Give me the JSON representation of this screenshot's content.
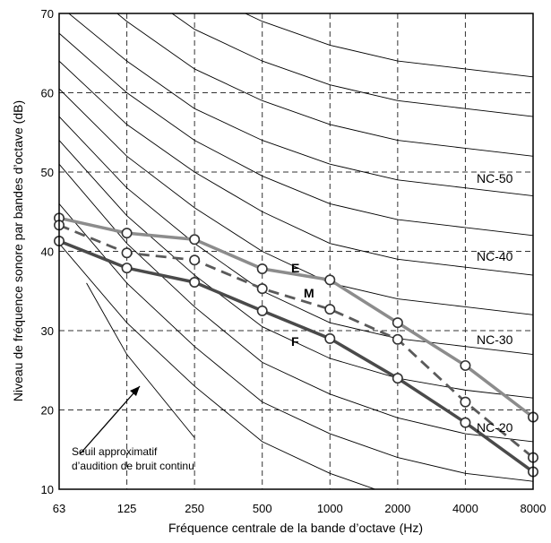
{
  "chart_data": {
    "type": "line",
    "xlabel": "Fréquence centrale de la bande d’octave (Hz)",
    "ylabel": "Niveau de fréquence sonore par bandes d’octave (dB)",
    "x_scale": "log2",
    "categories": [
      "63",
      "125",
      "250",
      "500",
      "1000",
      "2000",
      "4000",
      "8000"
    ],
    "ylim": [
      10,
      70
    ],
    "yticks": [
      "10",
      "20",
      "30",
      "40",
      "50",
      "60",
      "70"
    ],
    "grid": true,
    "grid_style": "dashed",
    "nc_curves": [
      {
        "name": "NC-20",
        "values": [
          51,
          41,
          33,
          26,
          22,
          19,
          17,
          16
        ]
      },
      {
        "name": "NC-30",
        "values": [
          57,
          48,
          41,
          35,
          31,
          29,
          28,
          27
        ]
      },
      {
        "name": "NC-40",
        "values": [
          64,
          56,
          50,
          45,
          41,
          39,
          38,
          37
        ]
      },
      {
        "name": "NC-50",
        "values": [
          71,
          64,
          58,
          54,
          51,
          49,
          48,
          47
        ]
      }
    ],
    "nc_labels": [
      "NC-50",
      "NC-40",
      "NC-30",
      "NC-20"
    ],
    "threshold": {
      "label_line1": "Seuil approximatif",
      "label_line2": "d’audition de bruit continu",
      "values": [
        null,
        27,
        16.5,
        null,
        null,
        null,
        null,
        null
      ]
    },
    "series": [
      {
        "name": "E",
        "color": "#8c8c8c",
        "dash": "solid",
        "values": [
          44.2,
          42.3,
          41.5,
          37.8,
          36.4,
          31.0,
          25.6,
          19.1
        ]
      },
      {
        "name": "M",
        "color": "#5a5a5a",
        "dash": "dashed",
        "values": [
          43.3,
          39.8,
          38.9,
          35.3,
          32.7,
          28.9,
          21.0,
          14.0
        ]
      },
      {
        "name": "F",
        "color": "#4a4a4a",
        "dash": "solid",
        "values": [
          41.3,
          37.9,
          36.1,
          32.5,
          29.0,
          24.0,
          18.4,
          12.2
        ]
      }
    ]
  }
}
